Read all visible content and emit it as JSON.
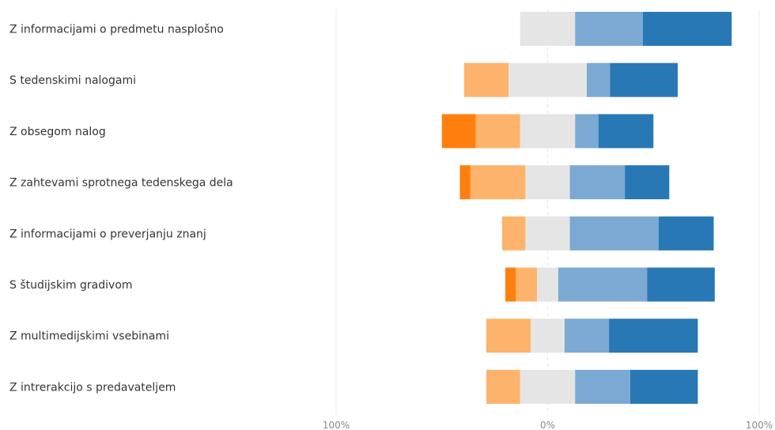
{
  "chart_data": {
    "type": "bar",
    "stacked": true,
    "orientation": "horizontal",
    "layout": "diverging",
    "categories": [
      "Z informacijami o predmetu nasplošno",
      "S tedenskimi nalogami",
      "Z obsegom nalog",
      "Z zahtevami sprotnega tedenskega dela",
      "Z informacijami o preverjanju znanj",
      "S študijskim gradivom",
      "Z multimedijskimi vsebinami",
      "Z intrerakcijo s predavateljem"
    ],
    "series": [
      {
        "color": "#ff7f0e",
        "side": "negative",
        "values": [
          0,
          0,
          16,
          5,
          0,
          5,
          0,
          0
        ]
      },
      {
        "color": "#fdb36b",
        "side": "negative",
        "values": [
          0,
          21,
          21,
          26,
          11,
          10,
          21,
          16
        ]
      },
      {
        "color": "#e5e5e5",
        "side": "neutral",
        "values": [
          26,
          37,
          26,
          21,
          21,
          10,
          16,
          26
        ]
      },
      {
        "color": "#7ba9d3",
        "side": "positive",
        "values": [
          32,
          11,
          11,
          26,
          42,
          42,
          21,
          26
        ]
      },
      {
        "color": "#2878b5",
        "side": "positive",
        "values": [
          42,
          32,
          26,
          21,
          26,
          32,
          42,
          32
        ]
      }
    ],
    "xlim": [
      -100,
      100
    ],
    "x_ticks": [
      "100%",
      "0%",
      "100%"
    ],
    "grid": true,
    "legend": "none",
    "title": "",
    "xlabel": "",
    "ylabel": ""
  }
}
